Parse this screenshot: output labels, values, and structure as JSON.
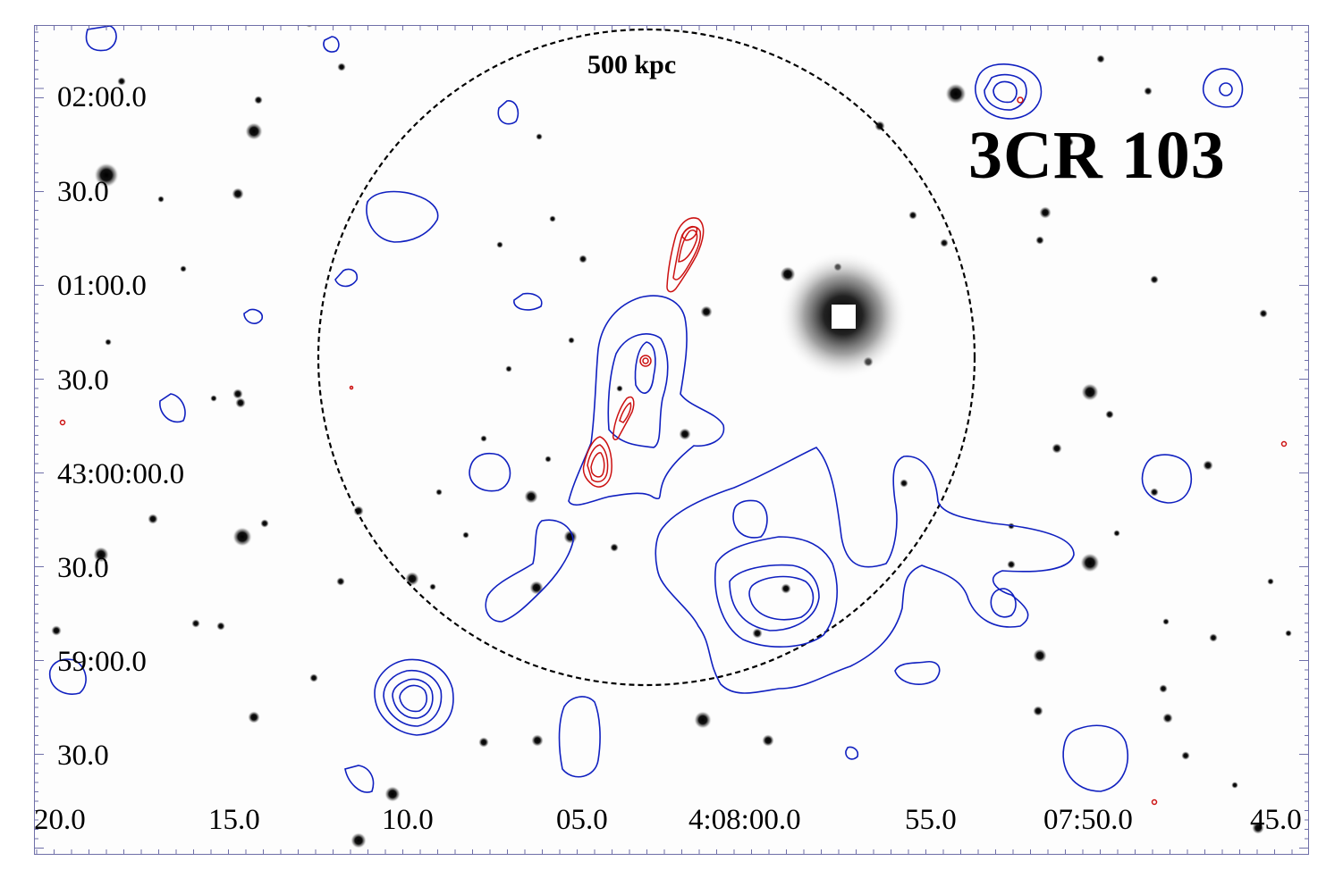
{
  "figure": {
    "source_name": "3CR 103",
    "scale_label": "500 kpc"
  },
  "axes": {
    "dec_labels": [
      "02:00.0",
      "30.0",
      "01:00.0",
      "30.0",
      "43:00:00.0",
      "30.0",
      "59:00.0",
      "30.0"
    ],
    "ra_labels": [
      "20.0",
      "15.0",
      "10.0",
      "05.0",
      "4:08:00.0",
      "55.0",
      "07:50.0",
      "45.0"
    ]
  },
  "colors": {
    "radio_contours": "#cc1111",
    "xray_contours": "#1020c0",
    "scale_circle": "#000000",
    "background": "#fdfdfd"
  }
}
